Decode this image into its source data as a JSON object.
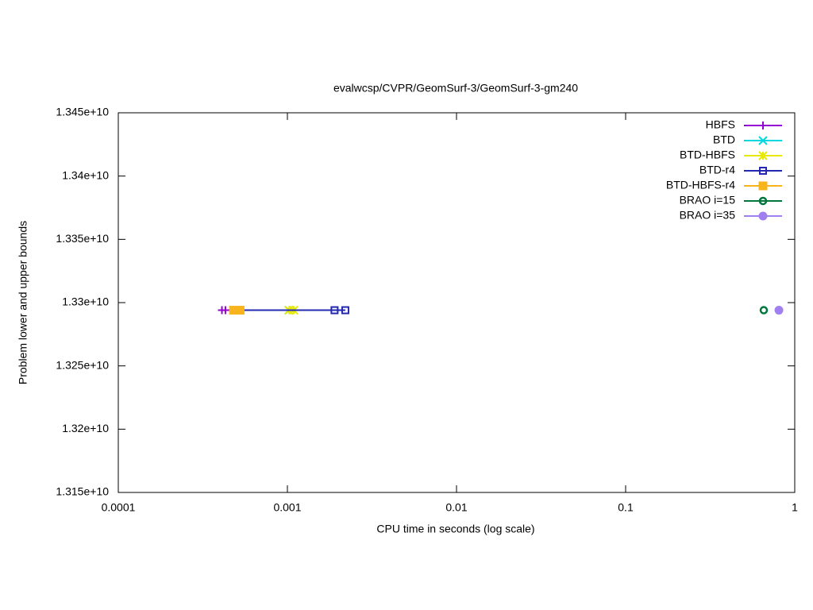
{
  "chart_data": {
    "type": "line",
    "title": "evalwcsp/CVPR/GeomSurf-3/GeomSurf-3-gm240",
    "x_label": "CPU time in seconds (log scale)",
    "y_label": "Problem lower and upper bounds",
    "x_log": true,
    "xlim": [
      0.0001,
      1
    ],
    "xticks": [
      0.0001,
      0.001,
      0.01,
      0.1,
      1
    ],
    "ylim": [
      13150000000,
      13450000000
    ],
    "yticks": [
      {
        "value": 13150000000,
        "label": "1.315e+10"
      },
      {
        "value": 13200000000,
        "label": "1.32e+10"
      },
      {
        "value": 13250000000,
        "label": "1.325e+10"
      },
      {
        "value": 13300000000,
        "label": "1.33e+10"
      },
      {
        "value": 13350000000,
        "label": "1.335e+10"
      },
      {
        "value": 13400000000,
        "label": "1.34e+10"
      },
      {
        "value": 13450000000,
        "label": "1.345e+10"
      }
    ],
    "grid": false,
    "legend": "top-right",
    "series": [
      {
        "name": "HBFS",
        "color": "#9400d3",
        "marker": "plus",
        "x": [
          0.00041,
          0.00043
        ],
        "values": [
          13294000000,
          13294000000
        ]
      },
      {
        "name": "BTD",
        "color": "#00d8e0",
        "marker": "cross",
        "x": [
          0.00102
        ],
        "values": [
          13294000000
        ]
      },
      {
        "name": "BTD-HBFS",
        "color": "#e8e800",
        "marker": "star",
        "x": [
          0.00102,
          0.00109
        ],
        "values": [
          13294000000,
          13294000000
        ]
      },
      {
        "name": "BTD-r4",
        "color": "#2228b0",
        "marker": "open-square",
        "x": [
          0.00052,
          0.0019,
          0.0022
        ],
        "values": [
          13294000000,
          13294000000,
          13294000000
        ]
      },
      {
        "name": "BTD-HBFS-r4",
        "color": "#f8b41c",
        "marker": "square",
        "x": [
          0.00048,
          0.000525
        ],
        "values": [
          13294000000,
          13294000000
        ]
      },
      {
        "name": "BRAO i=15",
        "color": "#00783c",
        "marker": "open-circle",
        "x": [
          0.656
        ],
        "values": [
          13294000000
        ]
      },
      {
        "name": "BRAO i=35",
        "color": "#a080f0",
        "marker": "circle",
        "x": [
          0.806
        ],
        "values": [
          13294000000
        ]
      }
    ]
  }
}
